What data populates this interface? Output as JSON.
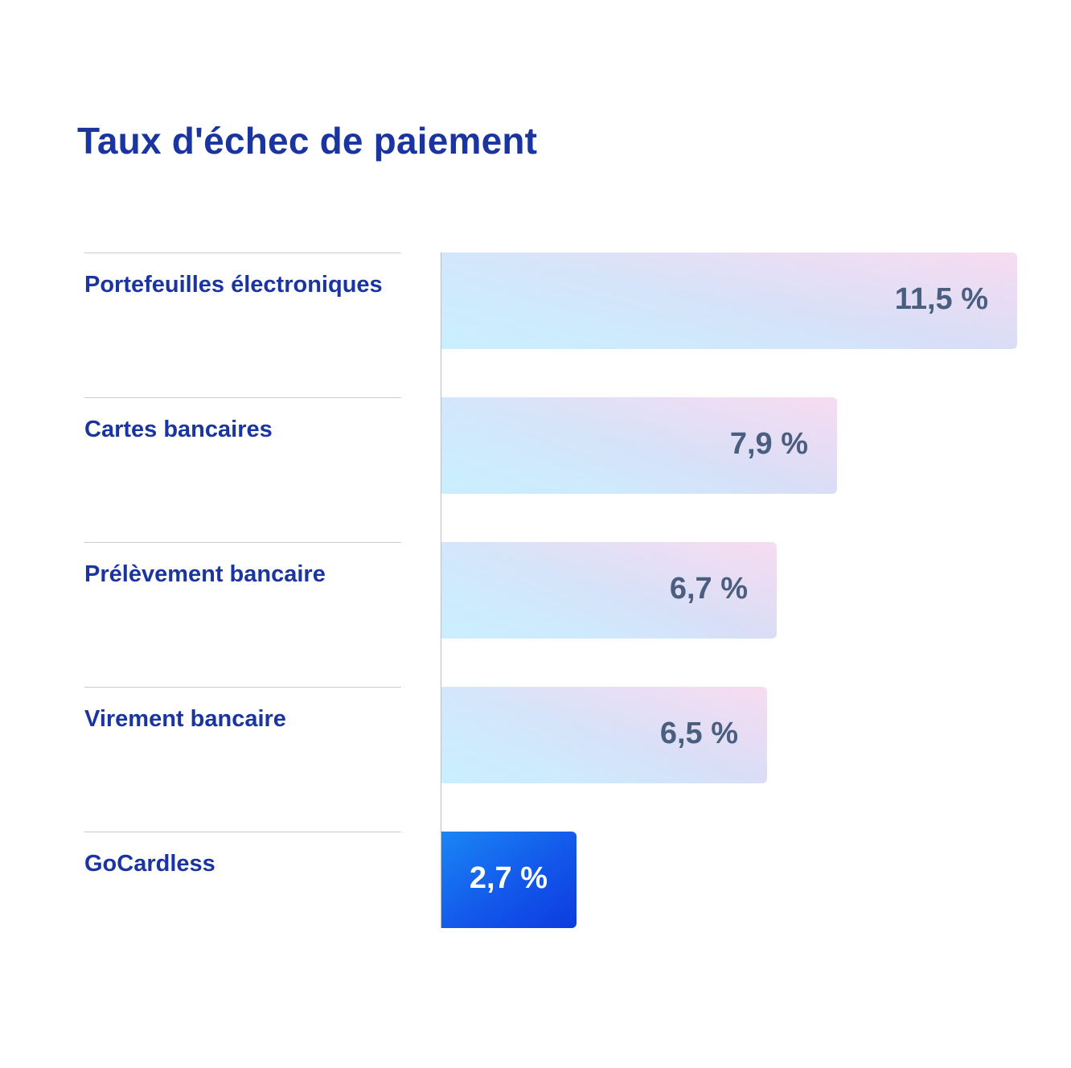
{
  "colors": {
    "title": "#1a35a0",
    "label": "#1a35a0",
    "value_text": "#4a5f80",
    "highlight_bar": "#1358ea",
    "highlight_value_text": "#ffffff"
  },
  "chart_data": {
    "type": "bar",
    "orientation": "horizontal",
    "title": "Taux d'échec de paiement",
    "xlabel": "",
    "ylabel": "",
    "categories": [
      "Portefeuilles électroniques",
      "Cartes bancaires",
      "Prélèvement bancaire",
      "Virement bancaire",
      "GoCardless"
    ],
    "values": [
      11.5,
      7.9,
      6.7,
      6.5,
      2.7
    ],
    "value_labels": [
      "11,5 %",
      "7,9 %",
      "6,7 %",
      "6,5 %",
      "2,7 %"
    ],
    "highlight": "GoCardless",
    "xlim": [
      0,
      11.5
    ],
    "grid": false
  }
}
